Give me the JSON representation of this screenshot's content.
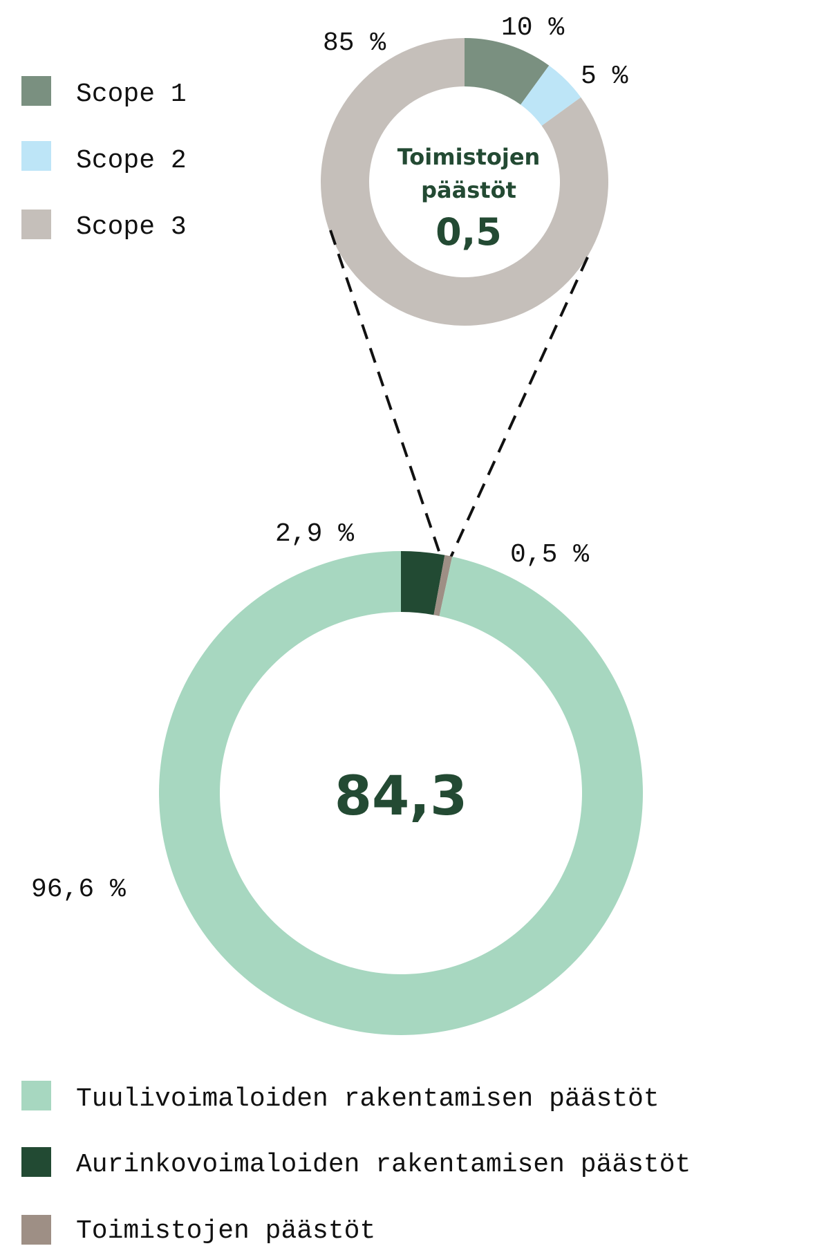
{
  "colors": {
    "scope1": "#7a9080",
    "scope2": "#bde5f7",
    "scope3": "#c5bfba",
    "wind": "#a7d7c0",
    "solar": "#224a33",
    "office": "#9e8f85",
    "center_text": "#234a33"
  },
  "top_legend": [
    {
      "label": "Scope 1",
      "color": "#7a9080"
    },
    {
      "label": "Scope 2",
      "color": "#bde5f7"
    },
    {
      "label": "Scope 3",
      "color": "#c5bfba"
    }
  ],
  "bottom_legend": [
    {
      "label": "Tuulivoimaloiden rakentamisen päästöt",
      "color": "#a7d7c0"
    },
    {
      "label": "Aurinkovoimaloiden rakentamisen päästöt",
      "color": "#224a33"
    },
    {
      "label": "Toimistojen päästöt",
      "color": "#9e8f85"
    }
  ],
  "chart_data": [
    {
      "type": "pie",
      "center_title_lines": [
        "Toimistojen",
        "päästöt"
      ],
      "center_value": "0,5",
      "series": [
        {
          "name": "Scope 1",
          "value": 10,
          "label": "10 %"
        },
        {
          "name": "Scope 2",
          "value": 5,
          "label": "5 %"
        },
        {
          "name": "Scope 3",
          "value": 85,
          "label": "85 %"
        }
      ]
    },
    {
      "type": "pie",
      "center_value": "84,3",
      "series": [
        {
          "name": "Aurinkovoimaloiden rakentamisen päästöt",
          "value": 2.9,
          "label": "2,9 %"
        },
        {
          "name": "Toimistojen päästöt",
          "value": 0.5,
          "label": "0,5 %"
        },
        {
          "name": "Tuulivoimaloiden rakentamisen päästöt",
          "value": 96.6,
          "label": "96,6 %"
        }
      ]
    }
  ]
}
